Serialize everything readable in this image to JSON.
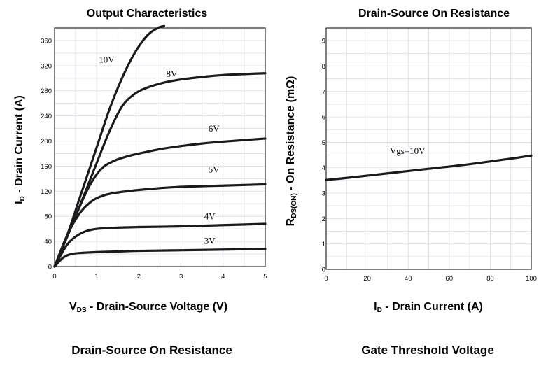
{
  "chart_data": [
    {
      "type": "line",
      "title": "Output Characteristics",
      "xlabel_main": "V",
      "xlabel_sub": "DS",
      "xlabel_rest": " - Drain-Source Voltage (V)",
      "ylabel_main": "I",
      "ylabel_sub": "D",
      "ylabel_rest": " - Drain Current (A)",
      "xlim": [
        0,
        5
      ],
      "ylim": [
        0,
        380
      ],
      "xticks": [
        "0",
        "1",
        "2",
        "3",
        "4",
        "5"
      ],
      "yticks": [
        "0",
        "40",
        "80",
        "120",
        "160",
        "200",
        "240",
        "280",
        "320",
        "360"
      ],
      "grid": true,
      "series": [
        {
          "name": "10V",
          "label_at": [
            1.05,
            325
          ],
          "x": [
            0,
            0.3,
            0.6,
            1.0,
            1.3,
            1.6,
            1.9,
            2.2,
            2.45,
            2.6
          ],
          "y": [
            0,
            50,
            110,
            190,
            250,
            300,
            340,
            368,
            380,
            383
          ]
        },
        {
          "name": "8V",
          "label_at": [
            2.65,
            302
          ],
          "x": [
            0,
            0.5,
            1.0,
            1.3,
            1.6,
            1.9,
            2.2,
            2.6,
            3.0,
            3.5,
            4.0,
            5.0
          ],
          "y": [
            0,
            80,
            165,
            215,
            255,
            275,
            285,
            293,
            298,
            302,
            305,
            308
          ]
        },
        {
          "name": "6V",
          "label_at": [
            3.65,
            215
          ],
          "x": [
            0,
            0.4,
            0.8,
            1.1,
            1.4,
            1.7,
            2.0,
            2.5,
            3.0,
            3.5,
            4.0,
            5.0
          ],
          "y": [
            0,
            65,
            125,
            155,
            168,
            175,
            180,
            187,
            192,
            196,
            199,
            204
          ]
        },
        {
          "name": "5V",
          "label_at": [
            3.65,
            150
          ],
          "x": [
            0,
            0.3,
            0.6,
            0.9,
            1.2,
            1.5,
            2.0,
            2.5,
            3.0,
            4.0,
            5.0
          ],
          "y": [
            0,
            50,
            85,
            105,
            114,
            118,
            122,
            125,
            127,
            129,
            131
          ]
        },
        {
          "name": "4V",
          "label_at": [
            3.55,
            75
          ],
          "x": [
            0,
            0.3,
            0.6,
            0.9,
            1.2,
            1.5,
            2.0,
            3.0,
            4.0,
            5.0
          ],
          "y": [
            0,
            35,
            52,
            59,
            61,
            62,
            63,
            64,
            66,
            68
          ]
        },
        {
          "name": "3V",
          "label_at": [
            3.55,
            36
          ],
          "x": [
            0,
            0.2,
            0.4,
            0.7,
            1.0,
            1.5,
            2.0,
            3.0,
            4.0,
            5.0
          ],
          "y": [
            0,
            14,
            20,
            22,
            23,
            24,
            25,
            26,
            27,
            28
          ]
        }
      ]
    },
    {
      "type": "line",
      "title": "Drain-Source On Resistance",
      "xlabel_main": "I",
      "xlabel_sub": "D",
      "xlabel_rest": " - Drain Current (A)",
      "ylabel_main": "R",
      "ylabel_sub": "DS(ON)",
      "ylabel_rest": " - On Resistance (mΩ)",
      "xlim": [
        0,
        100
      ],
      "ylim": [
        0,
        9.5
      ],
      "xticks": [
        "0",
        "20",
        "40",
        "60",
        "80",
        "100"
      ],
      "yticks": [
        "0",
        "1",
        "2",
        "3",
        "4",
        "5",
        "6",
        "7",
        "8",
        "9"
      ],
      "grid": true,
      "series": [
        {
          "name": "Vgs=10V",
          "label_at": [
            31,
            4.55
          ],
          "x": [
            0,
            10,
            30,
            50,
            70,
            90,
            100
          ],
          "y": [
            3.52,
            3.6,
            3.78,
            3.96,
            4.14,
            4.36,
            4.48
          ]
        }
      ]
    }
  ],
  "bottom_titles": {
    "left": "Drain-Source On Resistance",
    "right": "Gate Threshold Voltage"
  }
}
